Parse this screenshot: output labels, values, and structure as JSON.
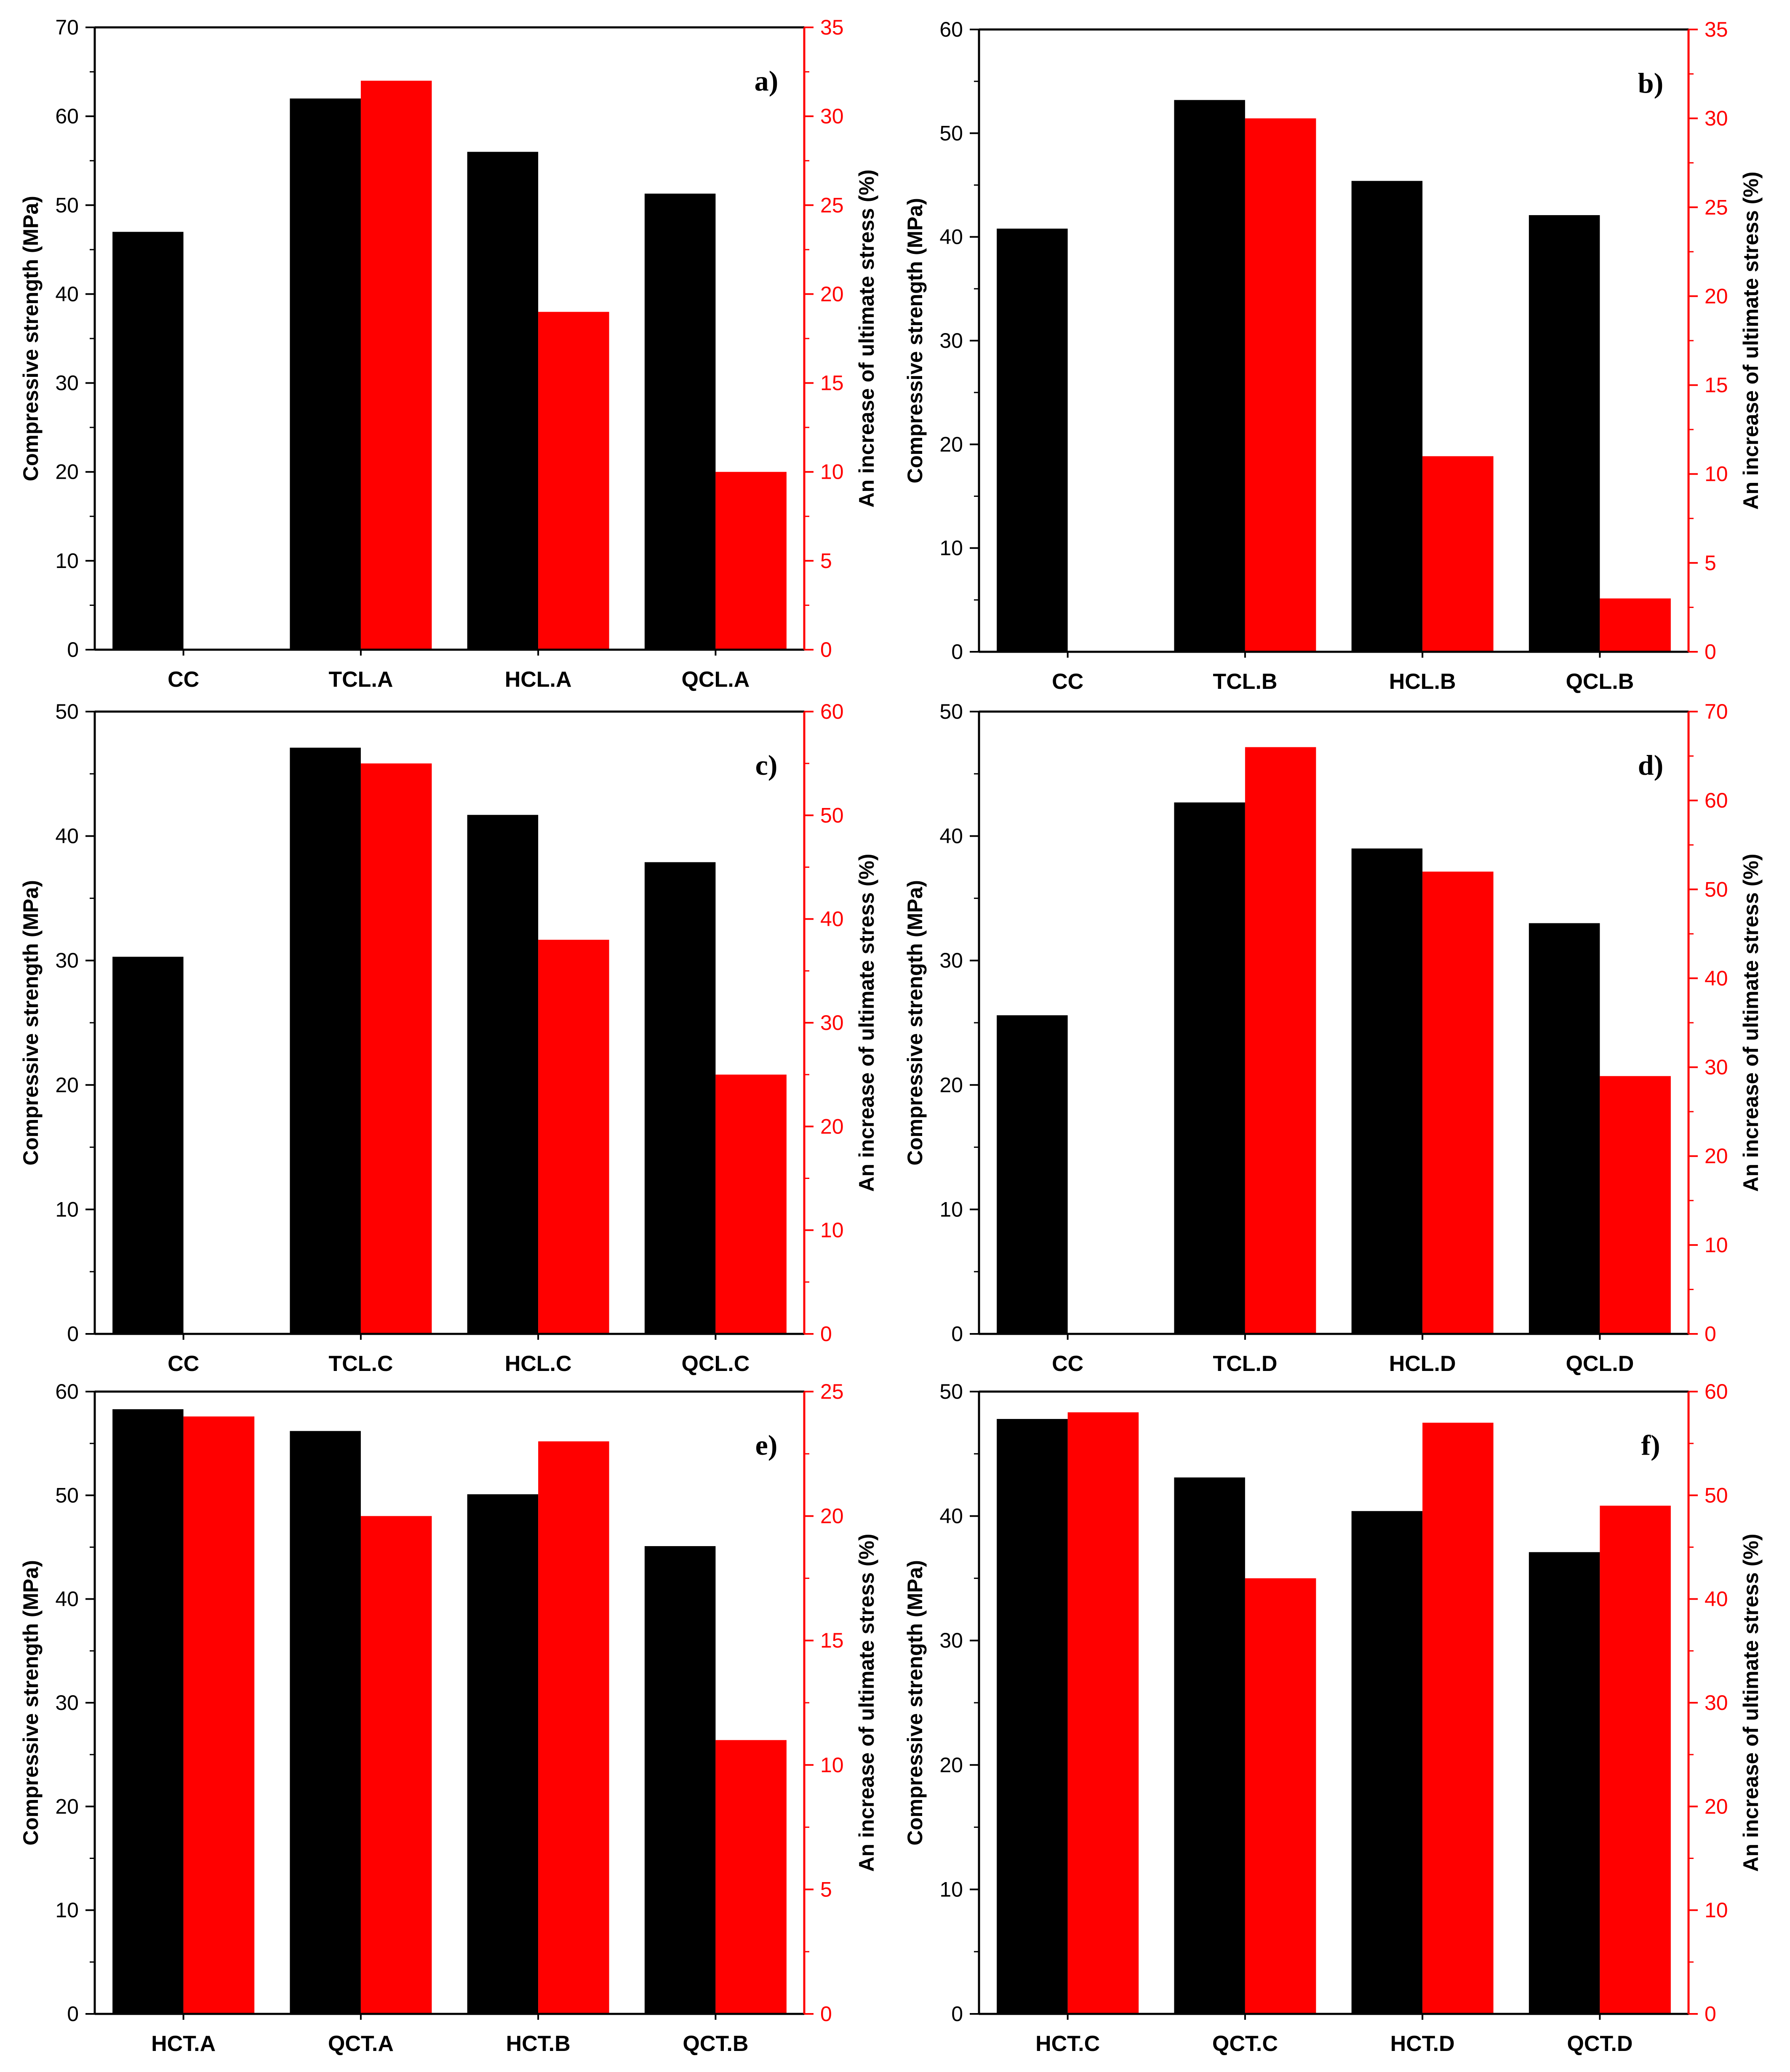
{
  "figure": {
    "colors": {
      "strength": "#000000",
      "increase": "#ff0000",
      "axis": "#000000"
    },
    "series_names": [
      "Compressive strength",
      "An increase of ultimate stress"
    ]
  },
  "chart_data": [
    {
      "type": "bar",
      "letter": "a)",
      "ylabel": "Compressive strength (MPa)",
      "y2label": "An increase of ultimate stress (%)",
      "ylim": [
        0,
        70
      ],
      "ytick_step": 10,
      "y2lim": [
        0,
        35
      ],
      "y2tick_step": 5,
      "categories": [
        "CC",
        "TCL.A",
        "HCL.A",
        "QCL.A"
      ],
      "series": [
        {
          "name": "Compressive strength",
          "axis": "left",
          "values": [
            47,
            62,
            56,
            51.3
          ]
        },
        {
          "name": "An increase of ultimate stress",
          "axis": "right",
          "values": [
            null,
            32,
            19,
            10
          ]
        }
      ]
    },
    {
      "type": "bar",
      "letter": "b)",
      "ylabel": "Compressive strength (MPa)",
      "y2label": "An increase of ultimate stress (%)",
      "ylim": [
        0,
        60
      ],
      "ytick_step": 10,
      "y2lim": [
        0,
        35
      ],
      "y2tick_step": 5,
      "categories": [
        "CC",
        "TCL.B",
        "HCL.B",
        "QCL.B"
      ],
      "series": [
        {
          "name": "Compressive strength",
          "axis": "left",
          "values": [
            40.8,
            53.2,
            45.4,
            42.1
          ]
        },
        {
          "name": "An increase of ultimate stress",
          "axis": "right",
          "values": [
            null,
            30,
            11,
            3
          ]
        }
      ]
    },
    {
      "type": "bar",
      "letter": "c)",
      "ylabel": "Compressive strength (MPa)",
      "y2label": "An increase of ultimate stress (%)",
      "ylim": [
        0,
        50
      ],
      "ytick_step": 10,
      "y2lim": [
        0,
        60
      ],
      "y2tick_step": 10,
      "categories": [
        "CC",
        "TCL.C",
        "HCL.C",
        "QCL.C"
      ],
      "series": [
        {
          "name": "Compressive strength",
          "axis": "left",
          "values": [
            30.3,
            47.1,
            41.7,
            37.9
          ]
        },
        {
          "name": "An increase of ultimate stress",
          "axis": "right",
          "values": [
            null,
            55,
            38,
            25
          ]
        }
      ]
    },
    {
      "type": "bar",
      "letter": "d)",
      "ylabel": "Compressive strength (MPa)",
      "y2label": "An increase of ultimate stress (%)",
      "ylim": [
        0,
        50
      ],
      "ytick_step": 10,
      "y2lim": [
        0,
        70
      ],
      "y2tick_step": 10,
      "categories": [
        "CC",
        "TCL.D",
        "HCL.D",
        "QCL.D"
      ],
      "series": [
        {
          "name": "Compressive strength",
          "axis": "left",
          "values": [
            25.6,
            42.7,
            39,
            33
          ]
        },
        {
          "name": "An increase of ultimate stress",
          "axis": "right",
          "values": [
            null,
            66,
            52,
            29
          ]
        }
      ]
    },
    {
      "type": "bar",
      "letter": "e)",
      "ylabel": "Compressive strength (MPa)",
      "y2label": "An increase of ultimate stress (%)",
      "ylim": [
        0,
        60
      ],
      "ytick_step": 10,
      "y2lim": [
        0,
        25
      ],
      "y2tick_step": 5,
      "categories": [
        "HCT.A",
        "QCT.A",
        "HCT.B",
        "QCT.B"
      ],
      "series": [
        {
          "name": "Compressive strength",
          "axis": "left",
          "values": [
            58.3,
            56.2,
            50.1,
            45.1
          ]
        },
        {
          "name": "An increase of ultimate stress",
          "axis": "right",
          "values": [
            24,
            20,
            23,
            11
          ]
        }
      ]
    },
    {
      "type": "bar",
      "letter": "f)",
      "ylabel": "Compressive strength (MPa)",
      "y2label": "An increase of ultimate stress (%)",
      "ylim": [
        0,
        50
      ],
      "ytick_step": 10,
      "y2lim": [
        0,
        60
      ],
      "y2tick_step": 10,
      "categories": [
        "HCT.C",
        "QCT.C",
        "HCT.D",
        "QCT.D"
      ],
      "series": [
        {
          "name": "Compressive strength",
          "axis": "left",
          "values": [
            47.8,
            43.1,
            40.4,
            37.1
          ]
        },
        {
          "name": "An increase of ultimate stress",
          "axis": "right",
          "values": [
            58,
            42,
            57,
            49
          ]
        }
      ]
    }
  ]
}
